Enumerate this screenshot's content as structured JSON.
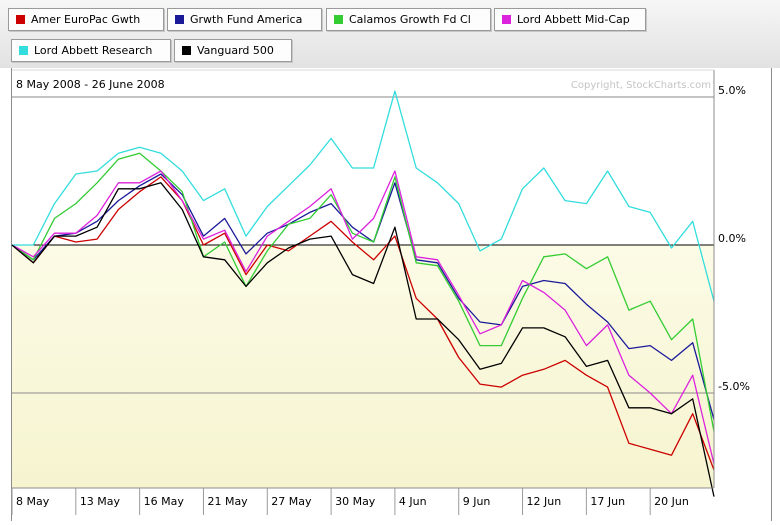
{
  "legend": [
    {
      "label": "Amer EuroPac Gwth",
      "color": "#cc0000"
    },
    {
      "label": "Grwth Fund America",
      "color": "#1a1a99"
    },
    {
      "label": "Calamos Growth Fd Cl",
      "color": "#33cc33"
    },
    {
      "label": "Lord Abbett Mid-Cap",
      "color": "#dd22dd"
    },
    {
      "label": "Lord Abbett Research",
      "color": "#33dddd"
    },
    {
      "label": "Vanguard 500",
      "color": "#000000"
    }
  ],
  "chart": {
    "date_range": "8 May 2008 - 26 June 2008",
    "copyright": "Copyright, StockCharts.com"
  },
  "chart_data": {
    "type": "line",
    "ylim": [
      -8.5,
      5.5
    ],
    "y_ticks": [
      {
        "value": 5,
        "label": "5.0%"
      },
      {
        "value": 0,
        "label": "0.0%"
      },
      {
        "value": -5,
        "label": "-5.0%"
      }
    ],
    "x_ticks": [
      {
        "index": 0,
        "label": "8 May"
      },
      {
        "index": 3,
        "label": "13 May"
      },
      {
        "index": 6,
        "label": "16 May"
      },
      {
        "index": 9,
        "label": "21 May"
      },
      {
        "index": 12,
        "label": "27 May"
      },
      {
        "index": 15,
        "label": "30 May"
      },
      {
        "index": 18,
        "label": "4 Jun"
      },
      {
        "index": 21,
        "label": "9 Jun"
      },
      {
        "index": 24,
        "label": "12 Jun"
      },
      {
        "index": 27,
        "label": "17 Jun"
      },
      {
        "index": 30,
        "label": "20 Jun"
      }
    ],
    "series": [
      {
        "name": "Amer EuroPac Gwth",
        "color": "#cc0000",
        "values": [
          0,
          -0.6,
          0.3,
          0.1,
          0.2,
          1.2,
          1.8,
          2.3,
          1.5,
          0,
          0.4,
          -1.0,
          0.0,
          -0.2,
          0.3,
          0.8,
          0.1,
          -0.5,
          0.3,
          -1.8,
          -2.5,
          -3.8,
          -4.7,
          -4.8,
          -4.4,
          -4.2,
          -3.9,
          -4.4,
          -4.8,
          -6.7,
          -6.9,
          -7.1,
          -5.7,
          -7.6
        ]
      },
      {
        "name": "Grwth Fund America",
        "color": "#1a1a99",
        "values": [
          0,
          -0.5,
          0.3,
          0.4,
          0.8,
          1.5,
          2.0,
          2.4,
          1.7,
          0.3,
          0.9,
          -0.3,
          0.4,
          0.7,
          1.1,
          1.4,
          0.6,
          0.1,
          2.1,
          -0.5,
          -0.6,
          -1.8,
          -2.6,
          -2.7,
          -1.4,
          -1.2,
          -1.3,
          -2.0,
          -2.6,
          -3.5,
          -3.4,
          -3.9,
          -3.3,
          -5.9
        ]
      },
      {
        "name": "Calamos Growth Fd Cl",
        "color": "#33cc33",
        "values": [
          0,
          -0.5,
          0.9,
          1.4,
          2.1,
          2.9,
          3.1,
          2.5,
          1.8,
          -0.4,
          0.1,
          -1.4,
          -0.2,
          0.7,
          0.9,
          1.7,
          0.4,
          0.1,
          2.3,
          -0.6,
          -0.7,
          -1.9,
          -3.4,
          -3.4,
          -1.8,
          -0.4,
          -0.3,
          -0.8,
          -0.4,
          -2.2,
          -1.9,
          -3.2,
          -2.5,
          -6.3
        ]
      },
      {
        "name": "Lord Abbett Mid-Cap",
        "color": "#dd22dd",
        "values": [
          0,
          -0.4,
          0.4,
          0.4,
          1.0,
          2.1,
          2.1,
          2.5,
          1.5,
          0.2,
          0.5,
          -0.9,
          0.3,
          0.8,
          1.3,
          1.9,
          0.2,
          0.9,
          2.5,
          -0.4,
          -0.5,
          -1.7,
          -3.0,
          -2.7,
          -1.2,
          -1.6,
          -2.2,
          -3.4,
          -2.7,
          -4.4,
          -5.0,
          -5.7,
          -4.4,
          -7.4
        ]
      },
      {
        "name": "Lord Abbett Research",
        "color": "#33dddd",
        "values": [
          0,
          0.0,
          1.4,
          2.4,
          2.5,
          3.1,
          3.3,
          3.1,
          2.5,
          1.5,
          1.9,
          0.3,
          1.3,
          2.0,
          2.7,
          3.6,
          2.6,
          2.6,
          5.2,
          2.6,
          2.1,
          1.4,
          -0.2,
          0.2,
          1.9,
          2.6,
          1.5,
          1.4,
          2.5,
          1.3,
          1.1,
          -0.1,
          0.8,
          -1.9
        ]
      },
      {
        "name": "Vanguard 500",
        "color": "#000000",
        "values": [
          0,
          -0.6,
          0.3,
          0.3,
          0.6,
          1.9,
          1.9,
          2.1,
          1.2,
          -0.4,
          -0.5,
          -1.4,
          -0.6,
          -0.1,
          0.2,
          0.3,
          -1.0,
          -1.3,
          0.6,
          -2.5,
          -2.5,
          -3.2,
          -4.2,
          -4.0,
          -2.8,
          -2.8,
          -3.1,
          -4.1,
          -3.9,
          -5.5,
          -5.5,
          -5.7,
          -5.2,
          -8.5
        ]
      }
    ]
  }
}
